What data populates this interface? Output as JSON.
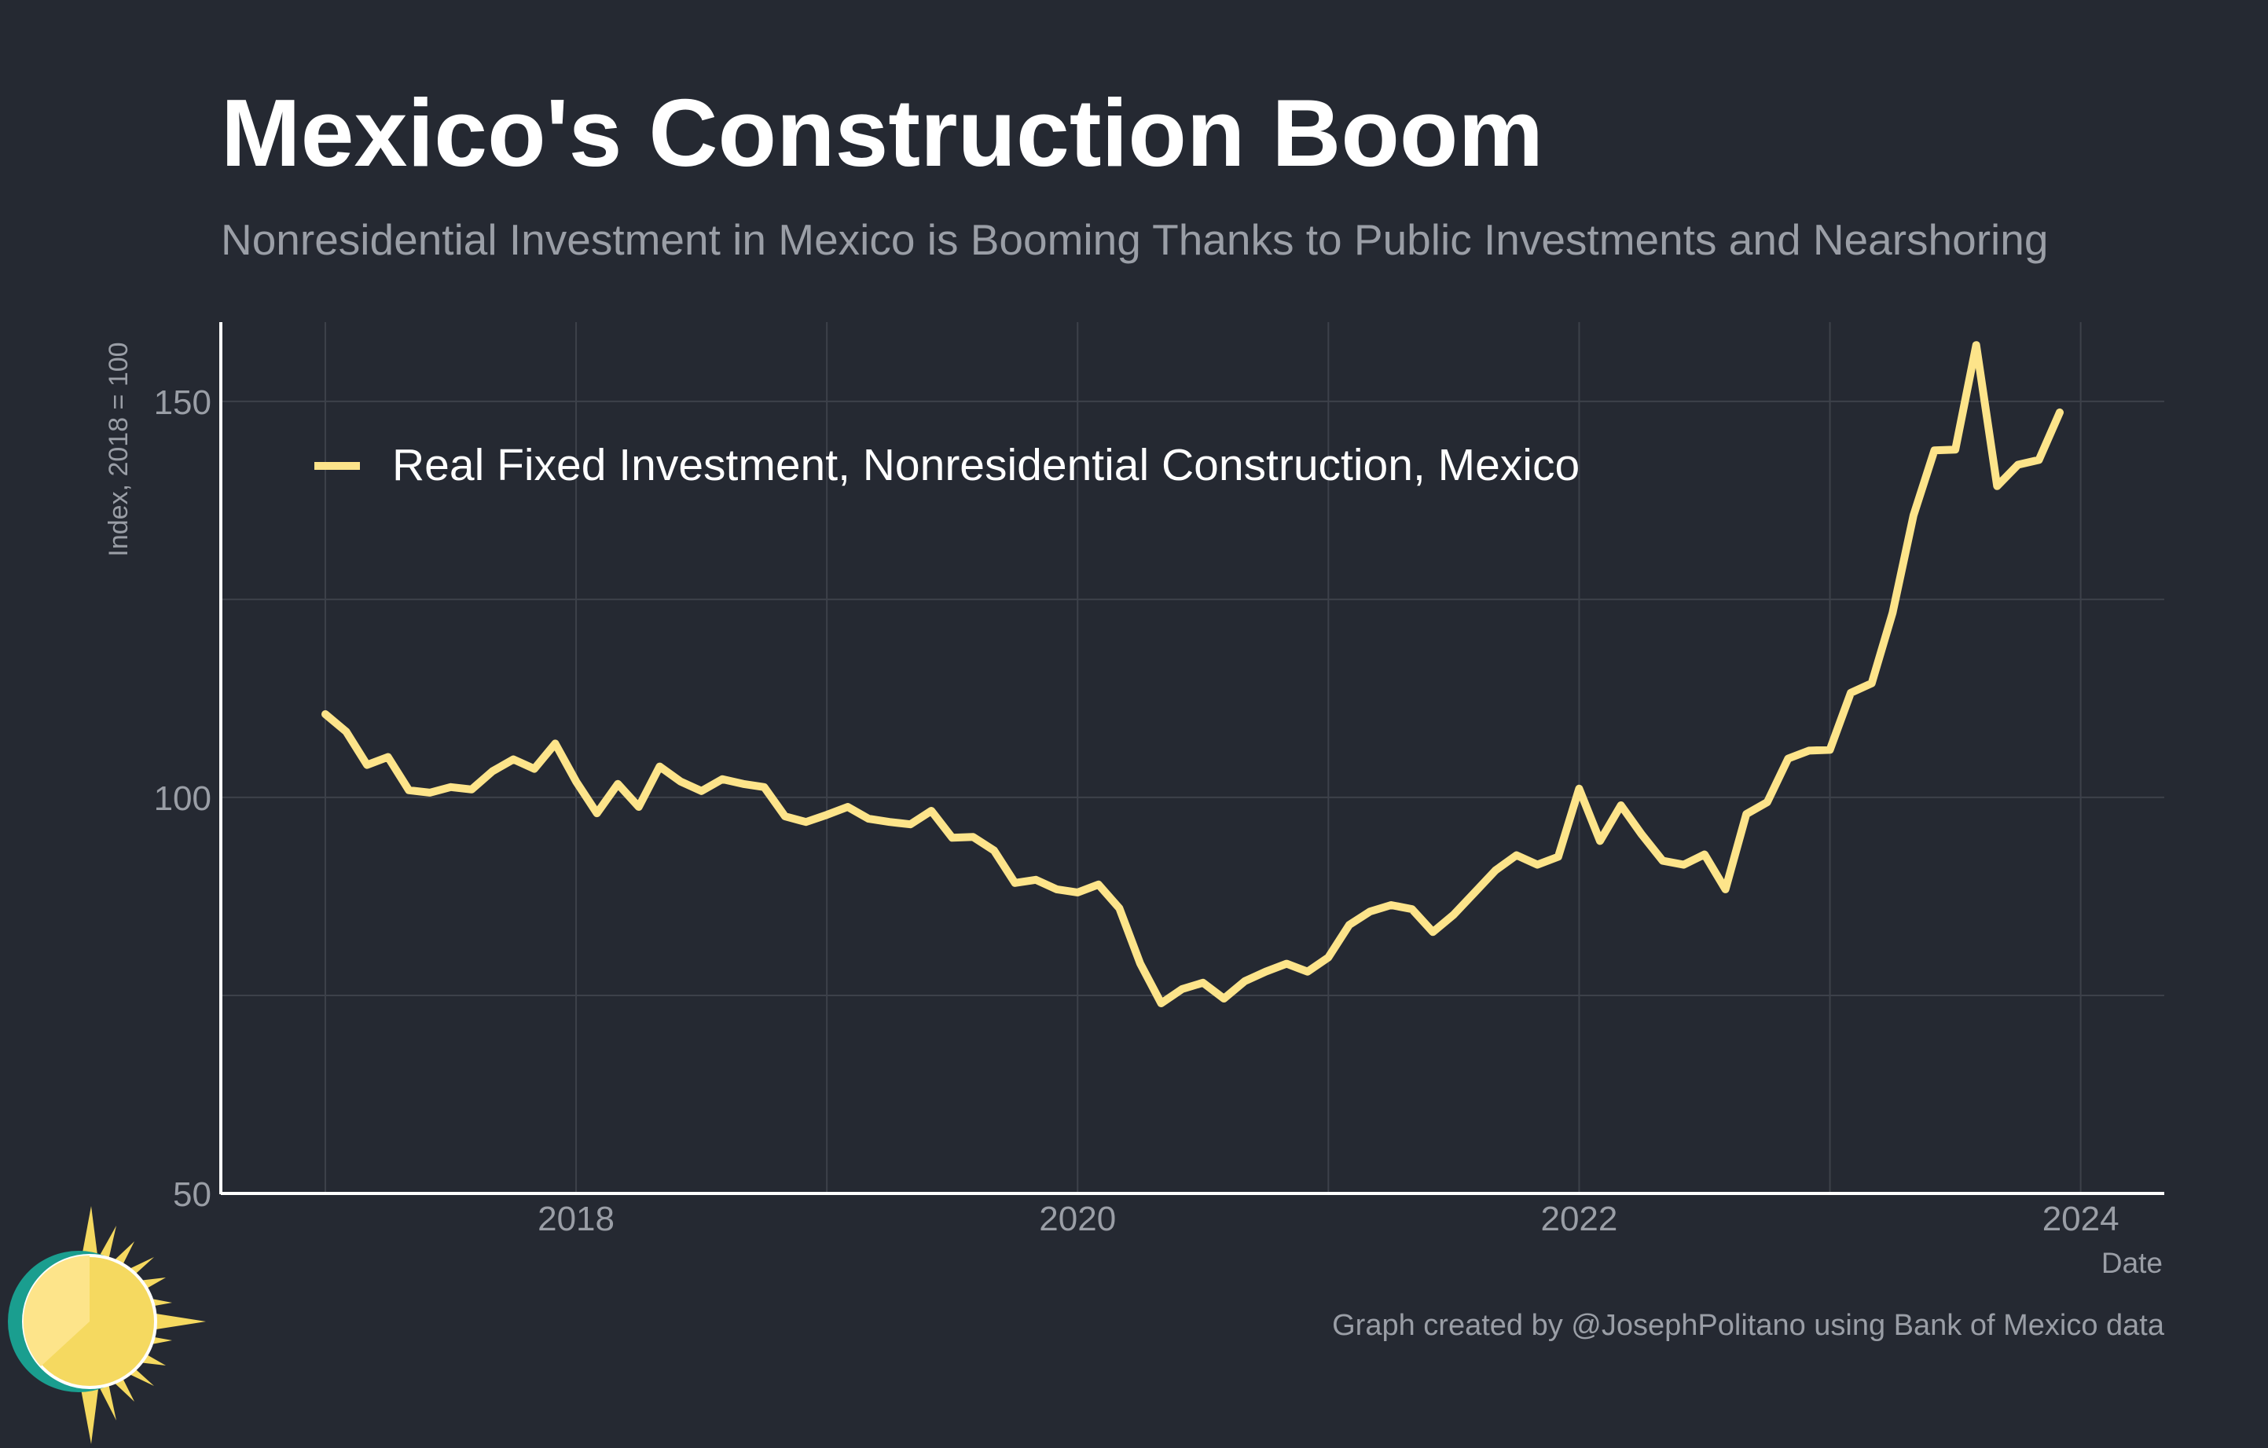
{
  "title": "Mexico's Construction Boom",
  "subtitle": "Nonresidential Investment in Mexico is Booming Thanks to Public Investments and Nearshoring",
  "caption": "Graph created by @JosephPolitano using Bank of Mexico data",
  "colors": {
    "background": "#252932",
    "line": "#fde48a",
    "grid": "#3d414a",
    "axis": "#ffffff",
    "muted_text": "#9a9ea6",
    "logo_teal": "#1a9e8f",
    "logo_yellow": "#f5d960"
  },
  "chart_data": {
    "type": "line",
    "title": "Mexico's Construction Boom",
    "subtitle": "Nonresidential Investment in Mexico is Booming Thanks to Public Investments and Nearshoring",
    "xlabel": "Date",
    "ylabel": "Index, 2018 = 100",
    "xlim": [
      "2016-08",
      "2024-05"
    ],
    "ylim": [
      50,
      160
    ],
    "x_ticks": [
      "2018",
      "2020",
      "2022",
      "2024"
    ],
    "y_ticks": [
      50,
      100,
      150
    ],
    "grid": true,
    "legend_position": "top-left",
    "series": [
      {
        "name": "Real Fixed Investment, Nonresidential Construction, Mexico",
        "color": "#fde48a",
        "x": [
          "2017-01",
          "2017-02",
          "2017-03",
          "2017-04",
          "2017-05",
          "2017-06",
          "2017-07",
          "2017-08",
          "2017-09",
          "2017-10",
          "2017-11",
          "2017-12",
          "2018-01",
          "2018-02",
          "2018-03",
          "2018-04",
          "2018-05",
          "2018-06",
          "2018-07",
          "2018-08",
          "2018-09",
          "2018-10",
          "2018-11",
          "2018-12",
          "2019-01",
          "2019-02",
          "2019-03",
          "2019-04",
          "2019-05",
          "2019-06",
          "2019-07",
          "2019-08",
          "2019-09",
          "2019-10",
          "2019-11",
          "2019-12",
          "2020-01",
          "2020-02",
          "2020-03",
          "2020-04",
          "2020-05",
          "2020-06",
          "2020-07",
          "2020-08",
          "2020-09",
          "2020-10",
          "2020-11",
          "2020-12",
          "2021-01",
          "2021-02",
          "2021-03",
          "2021-04",
          "2021-05",
          "2021-06",
          "2021-07",
          "2021-08",
          "2021-09",
          "2021-10",
          "2021-11",
          "2021-12",
          "2022-01",
          "2022-02",
          "2022-03",
          "2022-04",
          "2022-05",
          "2022-06",
          "2022-07",
          "2022-08",
          "2022-09",
          "2022-10",
          "2022-11",
          "2022-12",
          "2023-01",
          "2023-02",
          "2023-03",
          "2023-04",
          "2023-05",
          "2023-06",
          "2023-07",
          "2023-08",
          "2023-09",
          "2023-10",
          "2023-11",
          "2023-12"
        ],
        "values": [
          110.5,
          108.3,
          104.1,
          105.1,
          100.9,
          100.6,
          101.3,
          101.0,
          103.3,
          104.8,
          103.6,
          106.8,
          102.0,
          98.0,
          101.7,
          98.8,
          103.9,
          102.0,
          100.8,
          102.3,
          101.7,
          101.3,
          97.6,
          96.9,
          97.8,
          98.8,
          97.3,
          96.9,
          96.6,
          98.3,
          94.9,
          95.0,
          93.3,
          89.2,
          89.6,
          88.4,
          88.0,
          89.0,
          86.0,
          79.0,
          74.0,
          75.8,
          76.6,
          74.6,
          76.8,
          78.0,
          79.0,
          78.0,
          79.8,
          83.9,
          85.6,
          86.4,
          85.9,
          83.0,
          85.2,
          88.0,
          90.8,
          92.7,
          91.5,
          92.5,
          101.1,
          94.5,
          99.0,
          95.3,
          92.0,
          91.5,
          92.8,
          88.4,
          97.9,
          99.4,
          104.9,
          105.9,
          106.0,
          113.2,
          114.4,
          123.3,
          135.6,
          143.8,
          143.9,
          157.1,
          139.3,
          142.0,
          142.6,
          148.6
        ]
      }
    ]
  }
}
